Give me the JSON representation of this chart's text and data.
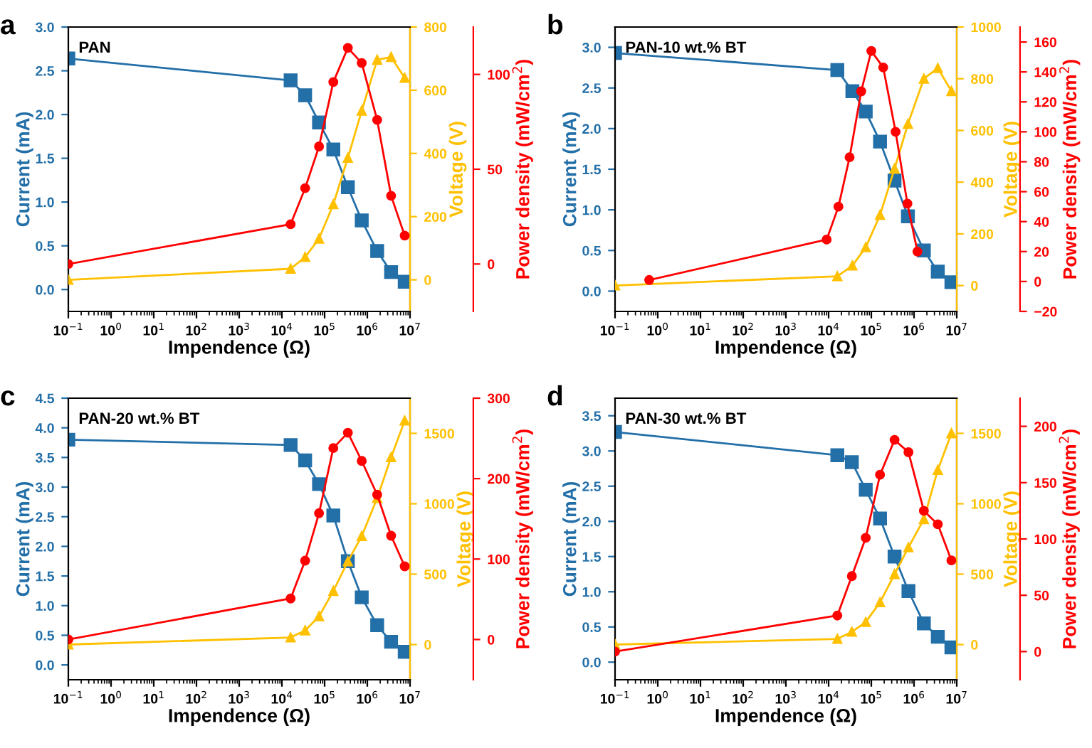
{
  "chart_data": [
    {
      "type": "line",
      "title": "PAN",
      "annotations": [
        "a"
      ],
      "xlabel": "Impendence (Ω)",
      "ylabel": "Current (mA)",
      "y2label": "Voltage (V)",
      "y3label": "Power density (mW/cm$^{2}$)",
      "log": "x",
      "xlim": [
        0.1,
        10000000
      ],
      "xticks": [
        {
          "value": 0.1,
          "label": "10$^{−1}$"
        },
        {
          "value": 1,
          "label": "10$^{0}$"
        },
        {
          "value": 10,
          "label": "10$^{1}$"
        },
        {
          "value": 100,
          "label": "10$^{2}$"
        },
        {
          "value": 1000,
          "label": "10$^{3}$"
        },
        {
          "value": 10000,
          "label": "10$^{4}$"
        },
        {
          "value": 100000,
          "label": "10$^{5}$"
        },
        {
          "value": 1000000,
          "label": "10$^{6}$"
        },
        {
          "value": 10000000,
          "label": "10$^{7}$"
        }
      ],
      "ylim": [
        -0.25,
        3.0
      ],
      "yticks": [
        {
          "value": 0,
          "label": "0.0"
        },
        0.5,
        {
          "value": 1,
          "label": "1.0"
        },
        1.5,
        {
          "value": 2,
          "label": "2.0"
        },
        2.5,
        {
          "value": 3,
          "label": "3.0"
        }
      ],
      "y2lim": [
        -100,
        800
      ],
      "y2ticks": [
        0,
        200,
        400,
        600,
        800
      ],
      "y3lim": [
        -25,
        125
      ],
      "y3ticks": [
        0,
        50,
        100
      ],
      "series": [
        {
          "color": "#236fa8",
          "marker": "square",
          "x": [
            0.1,
            16000,
            35000,
            74000,
            160000,
            350000,
            740000,
            1700000,
            3600000,
            7500000
          ],
          "values": [
            2.64,
            2.39,
            2.22,
            1.91,
            1.6,
            1.17,
            0.79,
            0.44,
            0.2,
            0.09
          ]
        },
        {
          "color": "#ffc000",
          "marker": "triangle",
          "axis": "y2",
          "x": [
            0.1,
            16000,
            35000,
            74000,
            160000,
            350000,
            740000,
            1700000,
            3600000,
            7500000
          ],
          "values": [
            0,
            35,
            72,
            130,
            239,
            386,
            535,
            696,
            705,
            639
          ]
        },
        {
          "color": "#ff0000",
          "marker": "circle",
          "axis": "y3",
          "x": [
            0.1,
            16000,
            35000,
            74000,
            160000,
            350000,
            740000,
            1700000,
            3600000,
            7500000
          ],
          "values": [
            0,
            21,
            40,
            62,
            96,
            114,
            106,
            76,
            36,
            15
          ]
        }
      ]
    },
    {
      "type": "line",
      "title": "PAN-10 wt.% BT",
      "annotations": [
        "b"
      ],
      "xlabel": "Impendence (Ω)",
      "ylabel": "Current (mA)",
      "y2label": "Voltage (V)",
      "y3label": "Power density (mW/cm$^{2}$)",
      "log": "x",
      "xlim": [
        0.1,
        10000000
      ],
      "xticks": [
        {
          "value": 0.1,
          "label": "10$^{−1}$"
        },
        {
          "value": 1,
          "label": "10$^{0}$"
        },
        {
          "value": 10,
          "label": "10$^{1}$"
        },
        {
          "value": 100,
          "label": "10$^{2}$"
        },
        {
          "value": 1000,
          "label": "10$^{3}$"
        },
        {
          "value": 10000,
          "label": "10$^{4}$"
        },
        {
          "value": 100000,
          "label": "10$^{5}$"
        },
        {
          "value": 1000000,
          "label": "10$^{6}$"
        },
        {
          "value": 10000000,
          "label": "10$^{7}$"
        }
      ],
      "ylim": [
        -0.25,
        3.25
      ],
      "yticks": [
        {
          "value": 0,
          "label": "0.0"
        },
        0.5,
        {
          "value": 1,
          "label": "1.0"
        },
        1.5,
        {
          "value": 2,
          "label": "2.0"
        },
        2.5,
        {
          "value": 3,
          "label": "3.0"
        }
      ],
      "y2lim": [
        -100,
        1000
      ],
      "y2ticks": [
        0,
        200,
        400,
        600,
        800,
        1000
      ],
      "y3lim": [
        -20,
        170
      ],
      "y3ticks": [
        {
          "value": -20,
          "label": "−20"
        },
        0,
        20,
        40,
        60,
        80,
        100,
        120,
        140,
        160
      ],
      "series": [
        {
          "color": "#236fa8",
          "marker": "square",
          "x": [
            0.1,
            16000,
            36000,
            74000,
            160000,
            350000,
            720000,
            1700000,
            3600000,
            7500000
          ],
          "values": [
            2.93,
            2.72,
            2.46,
            2.21,
            1.84,
            1.36,
            0.92,
            0.5,
            0.24,
            0.11
          ]
        },
        {
          "color": "#ffc000",
          "marker": "triangle",
          "axis": "y2",
          "x": [
            0.1,
            16000,
            36000,
            74000,
            160000,
            350000,
            720000,
            1700000,
            3600000,
            7500000
          ],
          "values": [
            0,
            36,
            77,
            148,
            273,
            452,
            625,
            800,
            841,
            752
          ]
        },
        {
          "color": "#ff0000",
          "marker": "circle",
          "axis": "y3",
          "x": [
            0.63,
            9000,
            17000,
            31000,
            58000,
            100000,
            190000,
            370000,
            700000,
            1200000
          ],
          "values": [
            1,
            28,
            50,
            83,
            127,
            154,
            143,
            100,
            52,
            20
          ]
        }
      ]
    },
    {
      "type": "line",
      "title": "PAN-20 wt.% BT",
      "annotations": [
        "c"
      ],
      "xlabel": "Impendence (Ω)",
      "ylabel": "Current (mA)",
      "y2label": "Voltage (V)",
      "y3label": "Power density (mW/cm$^{2}$)",
      "log": "x",
      "xlim": [
        0.1,
        10000000
      ],
      "xticks": [
        {
          "value": 0.1,
          "label": "10$^{−1}$"
        },
        {
          "value": 1,
          "label": "10$^{0}$"
        },
        {
          "value": 10,
          "label": "10$^{1}$"
        },
        {
          "value": 100,
          "label": "10$^{2}$"
        },
        {
          "value": 1000,
          "label": "10$^{3}$"
        },
        {
          "value": 10000,
          "label": "10$^{4}$"
        },
        {
          "value": 100000,
          "label": "10$^{5}$"
        },
        {
          "value": 1000000,
          "label": "10$^{6}$"
        },
        {
          "value": 10000000,
          "label": "10$^{7}$"
        }
      ],
      "ylim": [
        -0.25,
        4.5
      ],
      "yticks": [
        {
          "value": 0,
          "label": "0.0"
        },
        0.5,
        {
          "value": 1,
          "label": "1.0"
        },
        1.5,
        {
          "value": 2,
          "label": "2.0"
        },
        2.5,
        {
          "value": 3,
          "label": "3.0"
        },
        3.5,
        {
          "value": 4,
          "label": "4.0"
        },
        4.5
      ],
      "y2lim": [
        -250,
        1750
      ],
      "y2ticks": [
        0,
        500,
        1000,
        1500
      ],
      "y3lim": [
        -50,
        300
      ],
      "y3ticks": [
        0,
        100,
        200,
        300
      ],
      "series": [
        {
          "color": "#236fa8",
          "marker": "square",
          "x": [
            0.1,
            16000,
            35000,
            74000,
            160000,
            350000,
            740000,
            1700000,
            3600000,
            7500000
          ],
          "values": [
            3.8,
            3.71,
            3.45,
            3.05,
            2.52,
            1.75,
            1.14,
            0.67,
            0.39,
            0.22
          ]
        },
        {
          "color": "#ffc000",
          "marker": "triangle",
          "axis": "y2",
          "x": [
            0.1,
            16000,
            35000,
            74000,
            160000,
            350000,
            740000,
            1700000,
            3600000,
            7500000
          ],
          "values": [
            0,
            50,
            100,
            200,
            380,
            590,
            770,
            1040,
            1330,
            1590
          ]
        },
        {
          "color": "#ff0000",
          "marker": "circle",
          "axis": "y3",
          "x": [
            0.1,
            16000,
            35000,
            74000,
            160000,
            350000,
            740000,
            1700000,
            3600000,
            7500000
          ],
          "values": [
            0,
            51,
            98,
            157,
            238,
            257,
            222,
            180,
            129,
            91
          ]
        }
      ]
    },
    {
      "type": "line",
      "title": "PAN-30 wt.% BT",
      "annotations": [
        "d"
      ],
      "xlabel": "Impendence (Ω)",
      "ylabel": "Current (mA)",
      "y2label": "Voltage (V)",
      "y3label": "Power density (mW/cm$^{2}$)",
      "log": "x",
      "xlim": [
        0.1,
        10000000
      ],
      "xticks": [
        {
          "value": 0.1,
          "label": "10$^{−1}$"
        },
        {
          "value": 1,
          "label": "10$^{0}$"
        },
        {
          "value": 10,
          "label": "10$^{1}$"
        },
        {
          "value": 100,
          "label": "10$^{2}$"
        },
        {
          "value": 1000,
          "label": "10$^{3}$"
        },
        {
          "value": 10000,
          "label": "10$^{4}$"
        },
        {
          "value": 100000,
          "label": "10$^{5}$"
        },
        {
          "value": 1000000,
          "label": "10$^{6}$"
        },
        {
          "value": 10000000,
          "label": "10$^{7}$"
        }
      ],
      "ylim": [
        -0.25,
        3.75
      ],
      "yticks": [
        {
          "value": 0,
          "label": "0.0"
        },
        0.5,
        {
          "value": 1,
          "label": "1.0"
        },
        1.5,
        {
          "value": 2,
          "label": "2.0"
        },
        2.5,
        {
          "value": 3,
          "label": "3.0"
        },
        3.5
      ],
      "y2lim": [
        -250,
        1750
      ],
      "y2ticks": [
        0,
        500,
        1000,
        1500
      ],
      "y3lim": [
        -25,
        225
      ],
      "y3ticks": [
        0,
        50,
        100,
        150,
        200
      ],
      "series": [
        {
          "color": "#236fa8",
          "marker": "square",
          "x": [
            0.1,
            16000,
            35000,
            74000,
            160000,
            350000,
            740000,
            1700000,
            3600000,
            7500000
          ],
          "values": [
            3.27,
            2.94,
            2.84,
            2.45,
            2.04,
            1.5,
            1.01,
            0.55,
            0.36,
            0.21
          ]
        },
        {
          "color": "#ffc000",
          "marker": "triangle",
          "axis": "y2",
          "x": [
            0.1,
            16000,
            35000,
            74000,
            160000,
            350000,
            740000,
            1700000,
            3600000,
            7500000
          ],
          "values": [
            0,
            40,
            90,
            160,
            300,
            500,
            690,
            890,
            1240,
            1500
          ]
        },
        {
          "color": "#ff0000",
          "marker": "circle",
          "axis": "y3",
          "x": [
            0.1,
            16000,
            35000,
            74000,
            160000,
            350000,
            740000,
            1700000,
            3600000,
            7500000
          ],
          "values": [
            0,
            32,
            67,
            101,
            157,
            188,
            177,
            125,
            113,
            81
          ]
        }
      ]
    }
  ]
}
